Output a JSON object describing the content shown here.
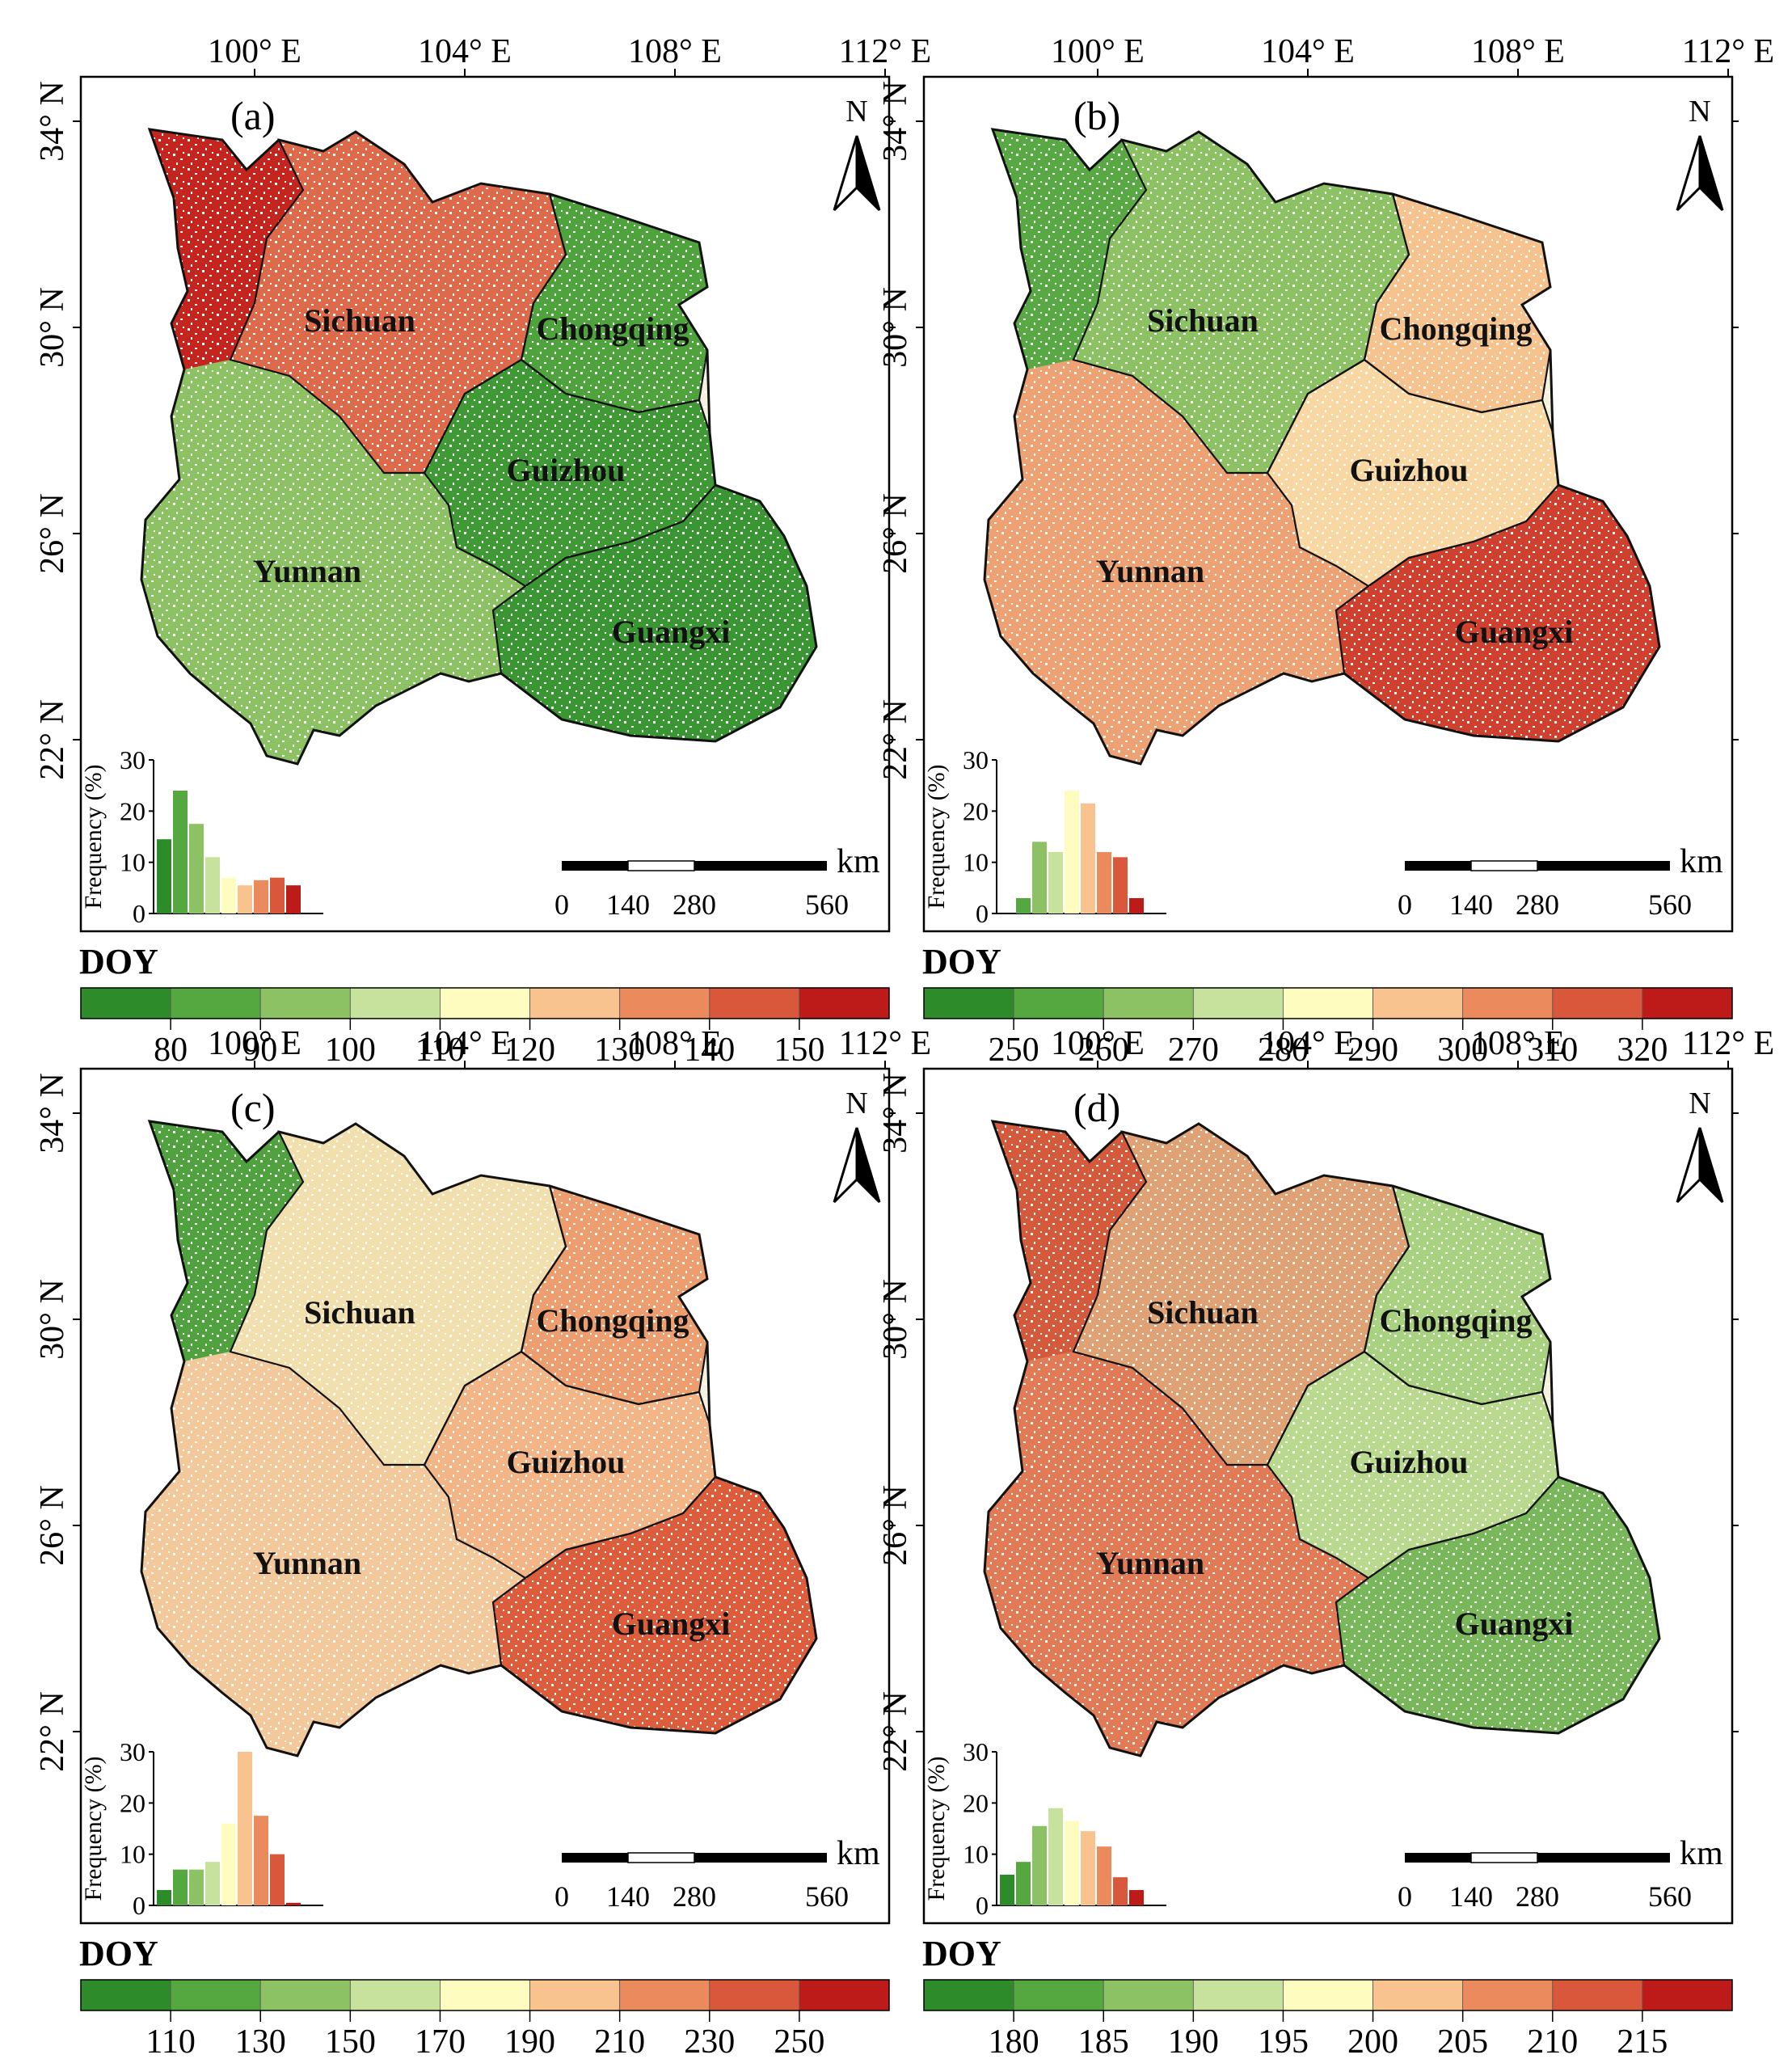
{
  "figure": {
    "lon_labels": [
      "100° E",
      "104° E",
      "108° E",
      "112° E"
    ],
    "lat_labels": [
      "34° N",
      "30° N",
      "26° N",
      "22° N"
    ],
    "north_label": "N",
    "scalebar": {
      "unit": "km",
      "ticks": [
        "0",
        "140",
        "280",
        "560"
      ]
    },
    "legend_title": "DOY",
    "hist_ylabel": "Frequency (%)",
    "hist_yticks": [
      "0",
      "10",
      "20",
      "30"
    ],
    "provinces": [
      "Sichuan",
      "Chongqing",
      "Guizhou",
      "Yunnan",
      "Guangxi"
    ],
    "palette": [
      "#2e8b2a",
      "#55a83f",
      "#8cc264",
      "#c7e29c",
      "#fefcbf",
      "#f8c38e",
      "#eb8a5d",
      "#d9573a",
      "#bd1a1a"
    ]
  },
  "panels": [
    {
      "id": "a",
      "label": "(a)",
      "legend_ticks": [
        "80",
        "90",
        "100",
        "110",
        "120",
        "130",
        "140",
        "150"
      ],
      "province_colors": {
        "Sichuan": "#dd6a4a",
        "Chongqing": "#4ea33d",
        "Guizhou": "#3f9a35",
        "Yunnan": "#8cc264",
        "Guangxi": "#3a9633",
        "NW": "#c4251e"
      },
      "histogram": [
        14.5,
        24,
        17.5,
        11,
        7,
        5.5,
        6.5,
        7,
        5.5
      ]
    },
    {
      "id": "b",
      "label": "(b)",
      "legend_ticks": [
        "250",
        "260",
        "270",
        "280",
        "290",
        "300",
        "310",
        "320"
      ],
      "province_colors": {
        "Sichuan": "#8cc264",
        "Chongqing": "#f6c38f",
        "Guizhou": "#f8d7a2",
        "Yunnan": "#eea172",
        "Guangxi": "#d0402e",
        "NW": "#58a843"
      },
      "histogram": [
        3,
        14,
        12,
        24,
        21.5,
        12,
        11,
        3
      ]
    },
    {
      "id": "c",
      "label": "(c)",
      "legend_ticks": [
        "110",
        "130",
        "150",
        "170",
        "190",
        "210",
        "230",
        "250"
      ],
      "province_colors": {
        "Sichuan": "#f1dfae",
        "Chongqing": "#ee9e6e",
        "Guizhou": "#f3b585",
        "Yunnan": "#f3c89a",
        "Guangxi": "#dc5c3c",
        "NW": "#4fa23d"
      },
      "histogram": [
        3,
        7,
        7,
        8.5,
        16,
        30,
        17.5,
        10,
        0.5
      ]
    },
    {
      "id": "d",
      "label": "(d)",
      "legend_ticks": [
        "180",
        "185",
        "190",
        "195",
        "200",
        "205",
        "210",
        "215"
      ],
      "province_colors": {
        "Sichuan": "#e0a274",
        "Chongqing": "#a9d280",
        "Guizhou": "#b8d98e",
        "Yunnan": "#e17a55",
        "Guangxi": "#79b85a",
        "NW": "#d55a3c"
      },
      "histogram": [
        6,
        8.5,
        15.5,
        19,
        16.5,
        14.5,
        11.5,
        5.5,
        3
      ]
    }
  ]
}
